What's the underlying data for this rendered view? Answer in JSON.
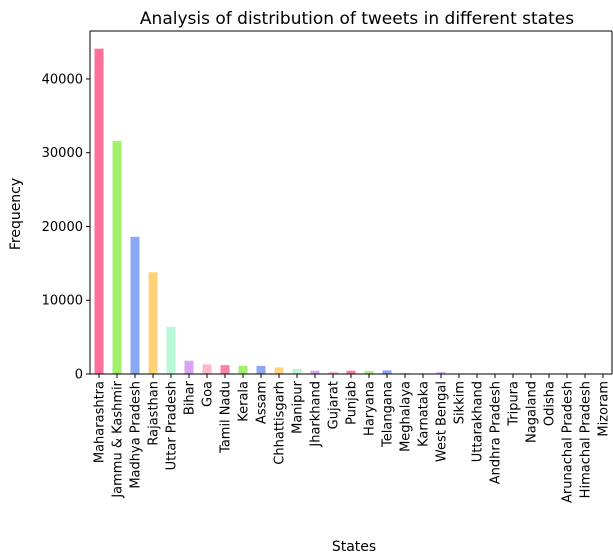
{
  "chart_data": {
    "type": "bar",
    "title": "Analysis of distribution of tweets in different states",
    "xlabel": "States",
    "ylabel": "Frequency",
    "ylim": [
      0,
      46500
    ],
    "yticks": [
      0,
      10000,
      20000,
      30000,
      40000
    ],
    "ytick_labels": [
      "0",
      "10000",
      "20000",
      "30000",
      "40000"
    ],
    "grid": false,
    "legend": "none",
    "categories": [
      "Maharashtra",
      "Jammu & Kashmir",
      "Madhya Pradesh",
      "Rajasthan",
      "Uttar Pradesh",
      "Bihar",
      "Goa",
      "Tamil Nadu",
      "Kerala",
      "Assam",
      "Chhattisgarh",
      "Manipur",
      "Jharkhand",
      "Gujarat",
      "Punjab",
      "Haryana",
      "Telangana",
      "Meghalaya",
      "Karnataka",
      "West Bengal",
      "Sikkim",
      "Uttarakhand",
      "Andhra Pradesh",
      "Tripura",
      "Nagaland",
      "Odisha",
      "Arunachal Pradesh",
      "Himachal Pradesh",
      "Mizoram"
    ],
    "values": [
      44100,
      31600,
      18600,
      13800,
      6400,
      1800,
      1300,
      1200,
      1100,
      1100,
      900,
      700,
      450,
      300,
      450,
      400,
      500,
      150,
      100,
      250,
      60,
      50,
      30,
      25,
      20,
      15,
      10,
      8,
      5
    ],
    "bar_colors": [
      "#ff6f9b",
      "#a3f06b",
      "#8aa8f5",
      "#ffd27a",
      "#b9f7d6",
      "#dba2f5",
      "#ffb8c9",
      "#ff80a3",
      "#a0ef6e",
      "#8ea6ef",
      "#ffd47e",
      "#b7f5d5",
      "#d7a6f2",
      "#ffbcc6",
      "#ff7aa0",
      "#a6f176",
      "#8fa7f0",
      "#ffd580",
      "#bdf6d8",
      "#d9a7f3",
      "#ffc0cb",
      "#ff7ea1",
      "#a4ee70",
      "#8ba5ee",
      "#ffd37c",
      "#bbf5d7",
      "#d8a5f2",
      "#ffbdc8",
      "#ff7ba2"
    ]
  }
}
